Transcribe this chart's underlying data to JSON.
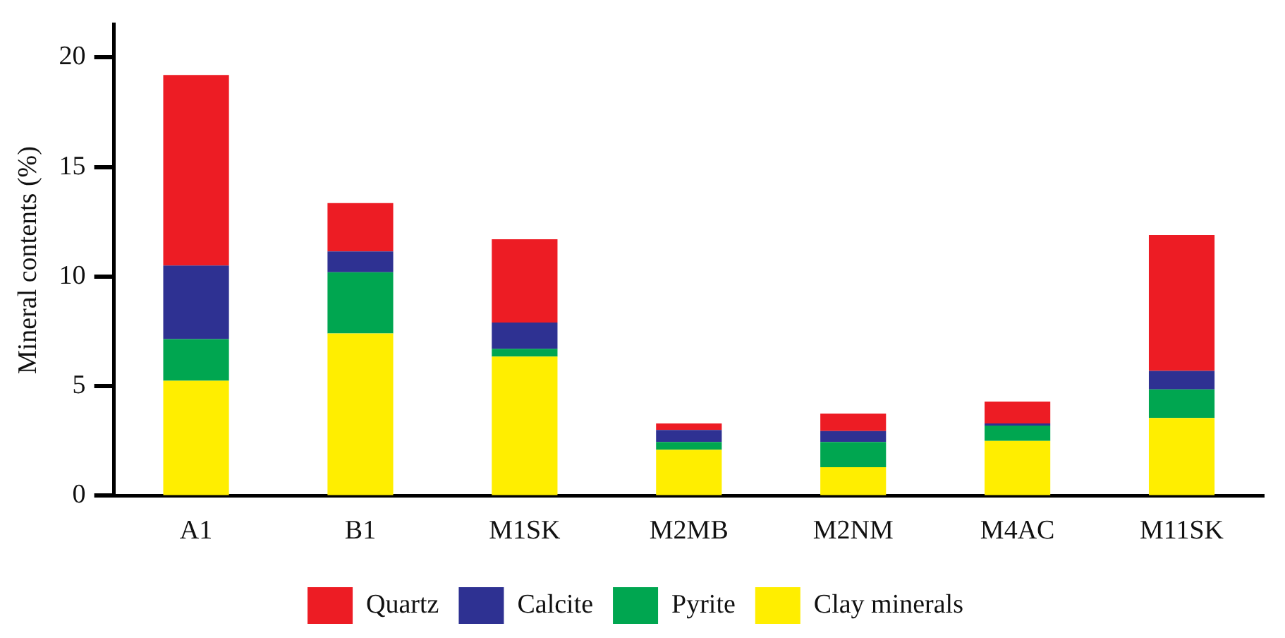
{
  "chart_data": {
    "type": "bar",
    "ylabel": "Mineral contents (%)",
    "stacked": true,
    "legend": "bottom",
    "grid": false,
    "categories": [
      "A1",
      "B1",
      "M1SK",
      "M2MB",
      "M2NM",
      "M4AC",
      "M11SK"
    ],
    "ylim": [
      0,
      21.5
    ],
    "yticks": [
      0,
      5,
      10,
      15,
      20
    ],
    "series": [
      {
        "name": "Clay minerals",
        "color": "#ffee00",
        "values": [
          5.25,
          7.4,
          6.35,
          2.1,
          1.3,
          2.5,
          3.55
        ]
      },
      {
        "name": "Pyrite",
        "color": "#00a650",
        "values": [
          1.9,
          2.8,
          0.35,
          0.35,
          1.15,
          0.7,
          1.3
        ]
      },
      {
        "name": "Calcite",
        "color": "#2e3192",
        "values": [
          3.35,
          0.95,
          1.2,
          0.55,
          0.5,
          0.1,
          0.85
        ]
      },
      {
        "name": "Quartz",
        "color": "#ed1c24",
        "values": [
          8.7,
          2.2,
          3.8,
          0.3,
          0.8,
          1.0,
          6.2
        ]
      }
    ]
  }
}
